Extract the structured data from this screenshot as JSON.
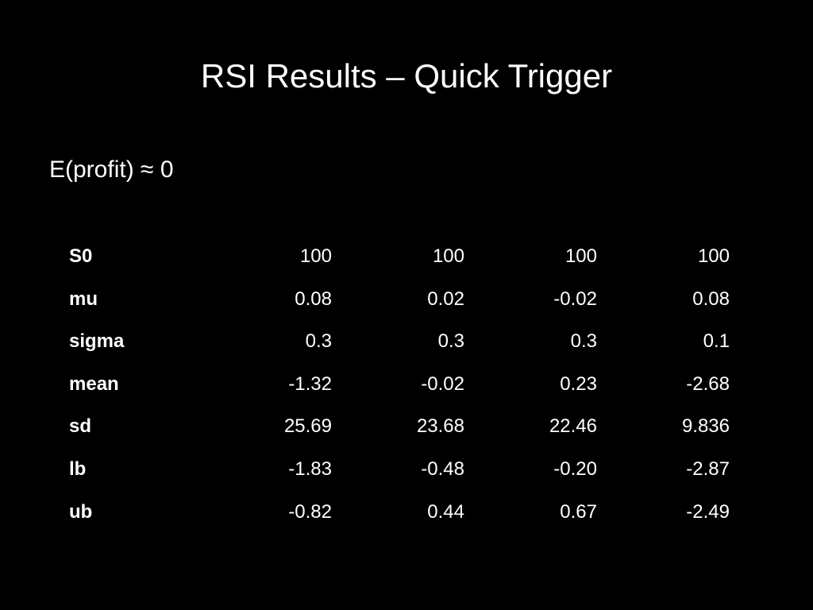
{
  "header": {
    "title": "RSI Results – Quick Trigger",
    "subtitle": "E(profit) ≈ 0"
  },
  "table": {
    "rows": [
      [
        "S0",
        "100",
        "100",
        "100",
        "100"
      ],
      [
        "mu",
        "0.08",
        "0.02",
        "-0.02",
        "0.08"
      ],
      [
        "sigma",
        "0.3",
        "0.3",
        "0.3",
        "0.1"
      ],
      [
        "mean",
        "-1.32",
        "-0.02",
        "0.23",
        "-2.68"
      ],
      [
        "sd",
        "25.69",
        "23.68",
        "22.46",
        "9.836"
      ],
      [
        "lb",
        "-1.83",
        "-0.48",
        "-0.20",
        "-2.87"
      ],
      [
        "ub",
        "-0.82",
        "0.44",
        "0.67",
        "-2.49"
      ]
    ]
  }
}
